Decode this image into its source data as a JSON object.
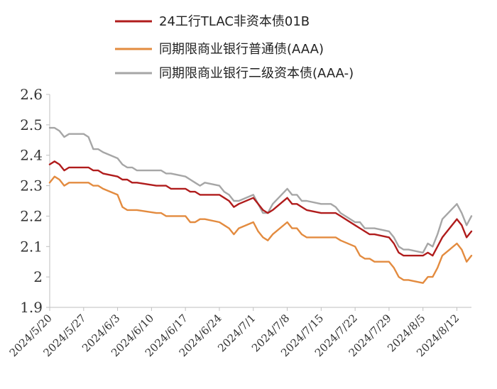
{
  "chart_data": {
    "type": "line",
    "title": "",
    "xlabel": "",
    "ylabel": "",
    "ylim": [
      1.9,
      2.6
    ],
    "y_ticks": [
      "2.6",
      "2.5",
      "2.4",
      "2.3",
      "2.2",
      "2.1",
      "2",
      "1.9"
    ],
    "grid": false,
    "legend_position": "top",
    "x_tick_labels": [
      "2024/5/20",
      "2024/5/27",
      "2024/6/3",
      "2024/6/10",
      "2024/6/17",
      "2024/6/24",
      "2024/7/1",
      "2024/7/8",
      "2024/7/15",
      "2024/7/22",
      "2024/7/29",
      "2024/8/5",
      "2024/8/12"
    ],
    "x_tick_dates": [
      "2024-05-20",
      "2024-05-27",
      "2024-06-03",
      "2024-06-10",
      "2024-06-17",
      "2024-06-24",
      "2024-07-01",
      "2024-07-08",
      "2024-07-15",
      "2024-07-22",
      "2024-07-29",
      "2024-08-05",
      "2024-08-12"
    ],
    "x_range": [
      "2024-05-20",
      "2024-08-15"
    ],
    "series": [
      {
        "name": "24工行TLAC非资本债01B",
        "color": "#b01c1c",
        "x": [
          "2024-05-20",
          "2024-05-21",
          "2024-05-22",
          "2024-05-23",
          "2024-05-24",
          "2024-05-27",
          "2024-05-28",
          "2024-05-29",
          "2024-05-30",
          "2024-05-31",
          "2024-06-03",
          "2024-06-04",
          "2024-06-05",
          "2024-06-06",
          "2024-06-07",
          "2024-06-11",
          "2024-06-12",
          "2024-06-13",
          "2024-06-14",
          "2024-06-17",
          "2024-06-18",
          "2024-06-19",
          "2024-06-20",
          "2024-06-21",
          "2024-06-24",
          "2024-06-25",
          "2024-06-26",
          "2024-06-27",
          "2024-06-28",
          "2024-07-01",
          "2024-07-02",
          "2024-07-03",
          "2024-07-04",
          "2024-07-05",
          "2024-07-08",
          "2024-07-09",
          "2024-07-10",
          "2024-07-11",
          "2024-07-12",
          "2024-07-15",
          "2024-07-16",
          "2024-07-17",
          "2024-07-18",
          "2024-07-19",
          "2024-07-22",
          "2024-07-23",
          "2024-07-24",
          "2024-07-25",
          "2024-07-26",
          "2024-07-29",
          "2024-07-30",
          "2024-07-31",
          "2024-08-01",
          "2024-08-02",
          "2024-08-05",
          "2024-08-06",
          "2024-08-07",
          "2024-08-08",
          "2024-08-09",
          "2024-08-12",
          "2024-08-13",
          "2024-08-14",
          "2024-08-15"
        ],
        "values": [
          2.37,
          2.38,
          2.37,
          2.35,
          2.36,
          2.36,
          2.36,
          2.35,
          2.35,
          2.34,
          2.33,
          2.32,
          2.32,
          2.31,
          2.31,
          2.3,
          2.3,
          2.3,
          2.29,
          2.29,
          2.28,
          2.28,
          2.27,
          2.27,
          2.27,
          2.26,
          2.25,
          2.23,
          2.24,
          2.26,
          2.24,
          2.22,
          2.21,
          2.22,
          2.26,
          2.24,
          2.24,
          2.23,
          2.22,
          2.21,
          2.21,
          2.21,
          2.21,
          2.2,
          2.17,
          2.16,
          2.15,
          2.14,
          2.14,
          2.13,
          2.11,
          2.08,
          2.07,
          2.07,
          2.07,
          2.08,
          2.07,
          2.1,
          2.13,
          2.19,
          2.17,
          2.13,
          2.15
        ]
      },
      {
        "name": "同期限商业银行普通债(AAA)",
        "color": "#e38b3f",
        "x": [
          "2024-05-20",
          "2024-05-21",
          "2024-05-22",
          "2024-05-23",
          "2024-05-24",
          "2024-05-27",
          "2024-05-28",
          "2024-05-29",
          "2024-05-30",
          "2024-05-31",
          "2024-06-03",
          "2024-06-04",
          "2024-06-05",
          "2024-06-06",
          "2024-06-07",
          "2024-06-11",
          "2024-06-12",
          "2024-06-13",
          "2024-06-14",
          "2024-06-17",
          "2024-06-18",
          "2024-06-19",
          "2024-06-20",
          "2024-06-21",
          "2024-06-24",
          "2024-06-25",
          "2024-06-26",
          "2024-06-27",
          "2024-06-28",
          "2024-07-01",
          "2024-07-02",
          "2024-07-03",
          "2024-07-04",
          "2024-07-05",
          "2024-07-08",
          "2024-07-09",
          "2024-07-10",
          "2024-07-11",
          "2024-07-12",
          "2024-07-15",
          "2024-07-16",
          "2024-07-17",
          "2024-07-18",
          "2024-07-19",
          "2024-07-22",
          "2024-07-23",
          "2024-07-24",
          "2024-07-25",
          "2024-07-26",
          "2024-07-29",
          "2024-07-30",
          "2024-07-31",
          "2024-08-01",
          "2024-08-02",
          "2024-08-05",
          "2024-08-06",
          "2024-08-07",
          "2024-08-08",
          "2024-08-09",
          "2024-08-12",
          "2024-08-13",
          "2024-08-14",
          "2024-08-15"
        ],
        "values": [
          2.31,
          2.33,
          2.32,
          2.3,
          2.31,
          2.31,
          2.31,
          2.3,
          2.3,
          2.29,
          2.27,
          2.23,
          2.22,
          2.22,
          2.22,
          2.21,
          2.21,
          2.2,
          2.2,
          2.2,
          2.18,
          2.18,
          2.19,
          2.19,
          2.18,
          2.17,
          2.16,
          2.14,
          2.16,
          2.18,
          2.15,
          2.13,
          2.12,
          2.14,
          2.18,
          2.16,
          2.16,
          2.14,
          2.13,
          2.13,
          2.13,
          2.13,
          2.13,
          2.12,
          2.1,
          2.07,
          2.06,
          2.06,
          2.05,
          2.05,
          2.03,
          2.0,
          1.99,
          1.99,
          1.98,
          2.0,
          2.0,
          2.03,
          2.07,
          2.11,
          2.09,
          2.05,
          2.07
        ]
      },
      {
        "name": "同期限商业银行二级资本债(AAA-)",
        "color": "#a6a6a6",
        "x": [
          "2024-05-20",
          "2024-05-21",
          "2024-05-22",
          "2024-05-23",
          "2024-05-24",
          "2024-05-27",
          "2024-05-28",
          "2024-05-29",
          "2024-05-30",
          "2024-05-31",
          "2024-06-03",
          "2024-06-04",
          "2024-06-05",
          "2024-06-06",
          "2024-06-07",
          "2024-06-11",
          "2024-06-12",
          "2024-06-13",
          "2024-06-14",
          "2024-06-17",
          "2024-06-18",
          "2024-06-19",
          "2024-06-20",
          "2024-06-21",
          "2024-06-24",
          "2024-06-25",
          "2024-06-26",
          "2024-06-27",
          "2024-06-28",
          "2024-07-01",
          "2024-07-02",
          "2024-07-03",
          "2024-07-04",
          "2024-07-05",
          "2024-07-08",
          "2024-07-09",
          "2024-07-10",
          "2024-07-11",
          "2024-07-12",
          "2024-07-15",
          "2024-07-16",
          "2024-07-17",
          "2024-07-18",
          "2024-07-19",
          "2024-07-22",
          "2024-07-23",
          "2024-07-24",
          "2024-07-25",
          "2024-07-26",
          "2024-07-29",
          "2024-07-30",
          "2024-07-31",
          "2024-08-01",
          "2024-08-02",
          "2024-08-05",
          "2024-08-06",
          "2024-08-07",
          "2024-08-08",
          "2024-08-09",
          "2024-08-12",
          "2024-08-13",
          "2024-08-14",
          "2024-08-15"
        ],
        "values": [
          2.49,
          2.49,
          2.48,
          2.46,
          2.47,
          2.47,
          2.46,
          2.42,
          2.42,
          2.41,
          2.39,
          2.37,
          2.36,
          2.36,
          2.35,
          2.35,
          2.35,
          2.34,
          2.34,
          2.33,
          2.32,
          2.31,
          2.3,
          2.31,
          2.3,
          2.28,
          2.27,
          2.25,
          2.25,
          2.27,
          2.24,
          2.21,
          2.21,
          2.24,
          2.29,
          2.27,
          2.27,
          2.25,
          2.25,
          2.24,
          2.24,
          2.24,
          2.23,
          2.21,
          2.18,
          2.18,
          2.16,
          2.16,
          2.16,
          2.15,
          2.13,
          2.1,
          2.09,
          2.09,
          2.08,
          2.11,
          2.1,
          2.14,
          2.19,
          2.24,
          2.21,
          2.17,
          2.2
        ]
      }
    ]
  }
}
